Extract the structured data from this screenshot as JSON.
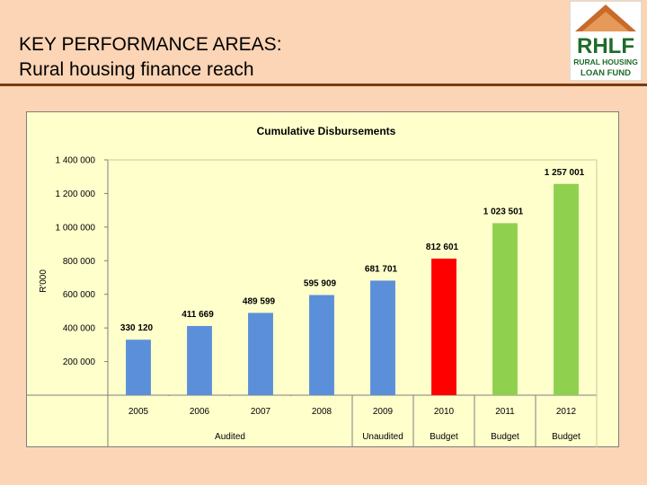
{
  "slide": {
    "title_line1": "KEY PERFORMANCE AREAS:",
    "title_line2": "Rural housing finance reach"
  },
  "logo": {
    "abbrev": "RHLF",
    "line1": "RURAL HOUSING",
    "line2": "LOAN FUND",
    "colors": {
      "text": "#1f6b2a",
      "roof": "#c86a2a",
      "background": "#ffffff"
    }
  },
  "chart_data": {
    "type": "bar",
    "title": "Cumulative Disbursements",
    "ylabel": "R'000",
    "xlabel": "",
    "categories": [
      "2005",
      "2006",
      "2007",
      "2008",
      "2009",
      "2010",
      "2011",
      "2012"
    ],
    "values": [
      330120,
      411669,
      489599,
      595909,
      681701,
      812601,
      1023501,
      1257001
    ],
    "data_labels": [
      "330 120",
      "411 669",
      "489 599",
      "595 909",
      "681 701",
      "812 601",
      "1 023 501",
      "1 257 001"
    ],
    "bar_colors": [
      "#5b8fd9",
      "#5b8fd9",
      "#5b8fd9",
      "#5b8fd9",
      "#5b8fd9",
      "#ff0000",
      "#8fd14f",
      "#8fd14f"
    ],
    "ylim": [
      0,
      1400000
    ],
    "yticks": [
      200000,
      400000,
      600000,
      800000,
      1000000,
      1200000,
      1400000
    ],
    "ytick_labels": [
      "200 000",
      "400 000",
      "600 000",
      "800 000",
      "1 000 000",
      "1 200 000",
      "1 400 000"
    ],
    "status_groups": [
      {
        "label": "Audited",
        "start": 0,
        "end": 4
      },
      {
        "label": "Unaudited",
        "start": 4,
        "end": 5
      },
      {
        "label": "Budget",
        "start": 5,
        "end": 6
      },
      {
        "label": "Budget",
        "start": 6,
        "end": 7
      },
      {
        "label": "Budget",
        "start": 7,
        "end": 8
      }
    ],
    "grid": false,
    "legend": "none"
  }
}
